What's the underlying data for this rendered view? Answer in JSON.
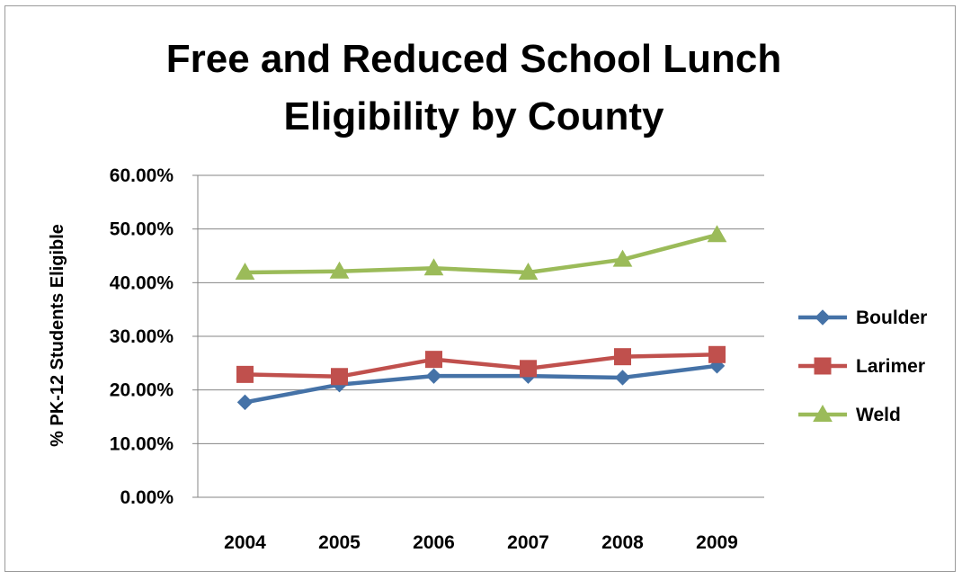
{
  "chart_data": {
    "type": "line",
    "title": [
      "Free and Reduced School Lunch",
      "Eligibility by County"
    ],
    "xlabel": "",
    "ylabel": "% PK-12 Students Eligible",
    "categories": [
      "2004",
      "2005",
      "2006",
      "2007",
      "2008",
      "2009"
    ],
    "ylim": [
      0,
      0.6
    ],
    "yticks": [
      "0.00%",
      "10.00%",
      "20.00%",
      "30.00%",
      "40.00%",
      "50.00%",
      "60.00%"
    ],
    "ytick_values": [
      0,
      0.1,
      0.2,
      0.3,
      0.4,
      0.5,
      0.6
    ],
    "grid": "horizontal",
    "legend_position": "right",
    "series": [
      {
        "name": "Boulder",
        "color": "#4572A7",
        "marker": "diamond",
        "values": [
          0.177,
          0.21,
          0.226,
          0.226,
          0.223,
          0.245
        ]
      },
      {
        "name": "Larimer",
        "color": "#C0504D",
        "marker": "square",
        "values": [
          0.229,
          0.225,
          0.257,
          0.24,
          0.262,
          0.266
        ]
      },
      {
        "name": "Weld",
        "color": "#9BBB59",
        "marker": "triangle",
        "values": [
          0.419,
          0.421,
          0.427,
          0.419,
          0.443,
          0.489
        ]
      }
    ]
  }
}
